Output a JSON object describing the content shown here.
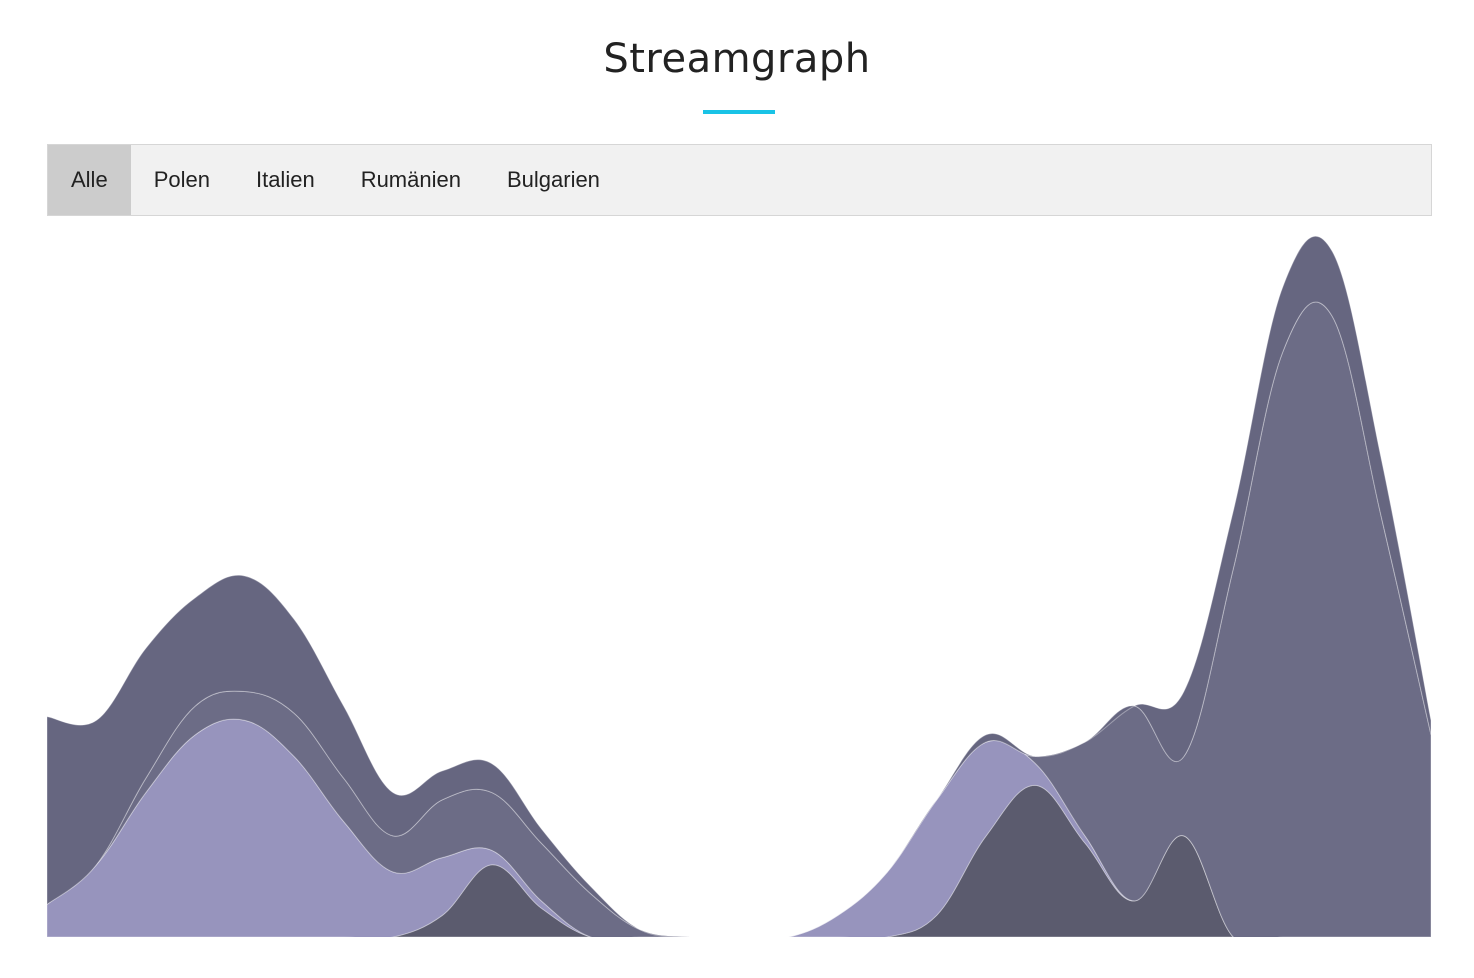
{
  "title": "Streamgraph",
  "accent_color": "#19c3e6",
  "tabs": [
    {
      "label": "Alle",
      "active": true
    },
    {
      "label": "Polen",
      "active": false
    },
    {
      "label": "Italien",
      "active": false
    },
    {
      "label": "Rumänien",
      "active": false
    },
    {
      "label": "Bulgarien",
      "active": false
    }
  ],
  "chart_data": {
    "type": "area",
    "stacked": true,
    "baseline": "zero",
    "axes_visible": false,
    "grid": false,
    "legend": "none",
    "ylim": [
      0,
      100
    ],
    "x": [
      0,
      1,
      2,
      3,
      4,
      5,
      6,
      7,
      8,
      9,
      10,
      11,
      12,
      13,
      14,
      15,
      16,
      17,
      18,
      19,
      20,
      21,
      22,
      23,
      24,
      25,
      26,
      27,
      28
    ],
    "series": [
      {
        "color": "#5b5b6e",
        "values": [
          0,
          0,
          0,
          0,
          0,
          0,
          0,
          0,
          3,
          10,
          4,
          0,
          0,
          0,
          0,
          0,
          0,
          0,
          3,
          14,
          21,
          13,
          5,
          14,
          0,
          0,
          0,
          0,
          0
        ]
      },
      {
        "color": "#9794bd",
        "values": [
          4.5,
          10,
          20,
          28,
          30,
          25,
          16,
          9,
          8,
          2,
          1,
          0,
          0,
          0,
          0,
          0,
          3,
          9,
          16,
          13,
          3,
          1,
          0,
          0,
          0,
          0,
          0,
          0,
          0
        ]
      },
      {
        "color": "#6c6c86",
        "values": [
          0,
          0,
          2,
          4,
          4,
          6,
          6,
          5,
          8,
          8,
          8,
          6,
          1,
          0,
          0,
          0,
          0,
          0,
          0,
          0,
          1,
          13,
          27,
          11,
          51,
          81,
          86,
          58,
          28
        ]
      },
      {
        "color": "#666680",
        "values": [
          26,
          20,
          18,
          15,
          16,
          13,
          10,
          6,
          4,
          4,
          2,
          1,
          0,
          0,
          0,
          0,
          0,
          0,
          0,
          1,
          0,
          0,
          0,
          9,
          8,
          9,
          9,
          8,
          2
        ]
      }
    ]
  }
}
